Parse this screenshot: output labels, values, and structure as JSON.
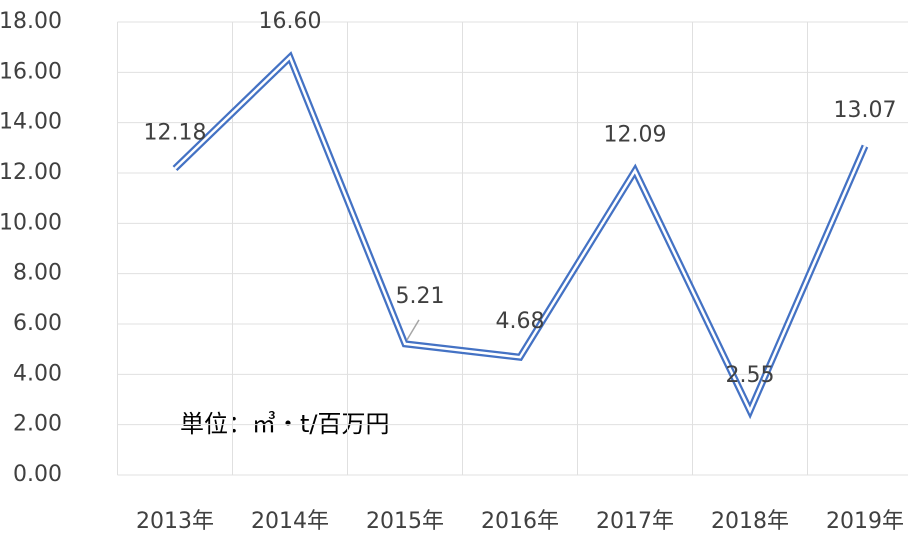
{
  "chart_data": {
    "type": "line",
    "categories": [
      "2013年",
      "2014年",
      "2015年",
      "2016年",
      "2017年",
      "2018年",
      "2019年"
    ],
    "series": [
      {
        "name": null,
        "color": "#4472c4",
        "values": [
          12.18,
          16.6,
          5.21,
          4.68,
          12.09,
          2.55,
          13.07
        ],
        "value_labels": [
          "12.18",
          "16.60",
          "5.21",
          "4.68",
          "12.09",
          "2.55",
          "13.07"
        ]
      }
    ],
    "ylim": [
      0,
      18
    ],
    "yticks": [
      {
        "value": 0,
        "label": "0.00"
      },
      {
        "value": 2,
        "label": "2.00"
      },
      {
        "value": 4,
        "label": "4.00"
      },
      {
        "value": 6,
        "label": "6.00"
      },
      {
        "value": 8,
        "label": "8.00"
      },
      {
        "value": 10,
        "label": "10.00"
      },
      {
        "value": 12,
        "label": "12.00"
      },
      {
        "value": 14,
        "label": "14.00"
      },
      {
        "value": 16,
        "label": "16.00"
      },
      {
        "value": 18,
        "label": "18.00"
      }
    ],
    "grid": true,
    "annotation": "単位：㎥・t/百万円"
  }
}
